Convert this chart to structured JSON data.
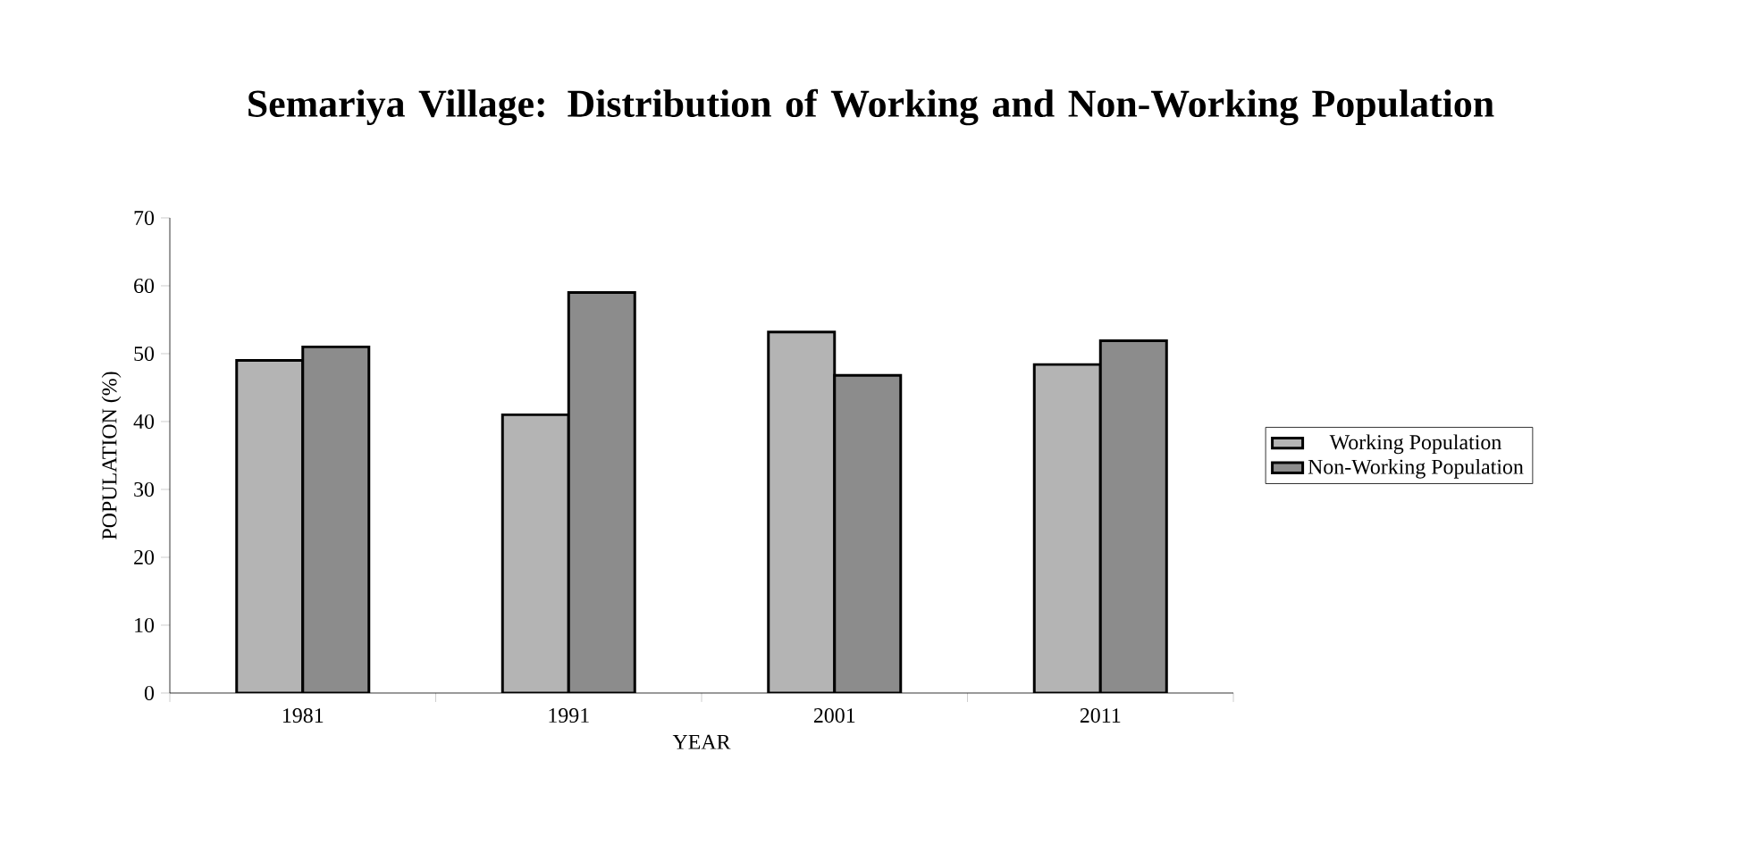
{
  "chart_data": {
    "type": "bar",
    "title": "Semariya Village: Distribution of Working and Non-Working Population",
    "xlabel": "YEAR",
    "ylabel": "POPULATION (%)",
    "categories": [
      "1981",
      "1991",
      "2001",
      "2011"
    ],
    "series": [
      {
        "name": "Working Population",
        "color": "#b4b4b4",
        "values": [
          49,
          41,
          53.2,
          48.4
        ]
      },
      {
        "name": "Non-Working Population",
        "color": "#8c8c8c",
        "values": [
          51,
          59,
          46.8,
          51.9
        ]
      }
    ],
    "ylim": [
      0,
      70
    ],
    "yticks": [
      0,
      10,
      20,
      30,
      40,
      50,
      60,
      70
    ],
    "grid": false,
    "legend": "right"
  }
}
